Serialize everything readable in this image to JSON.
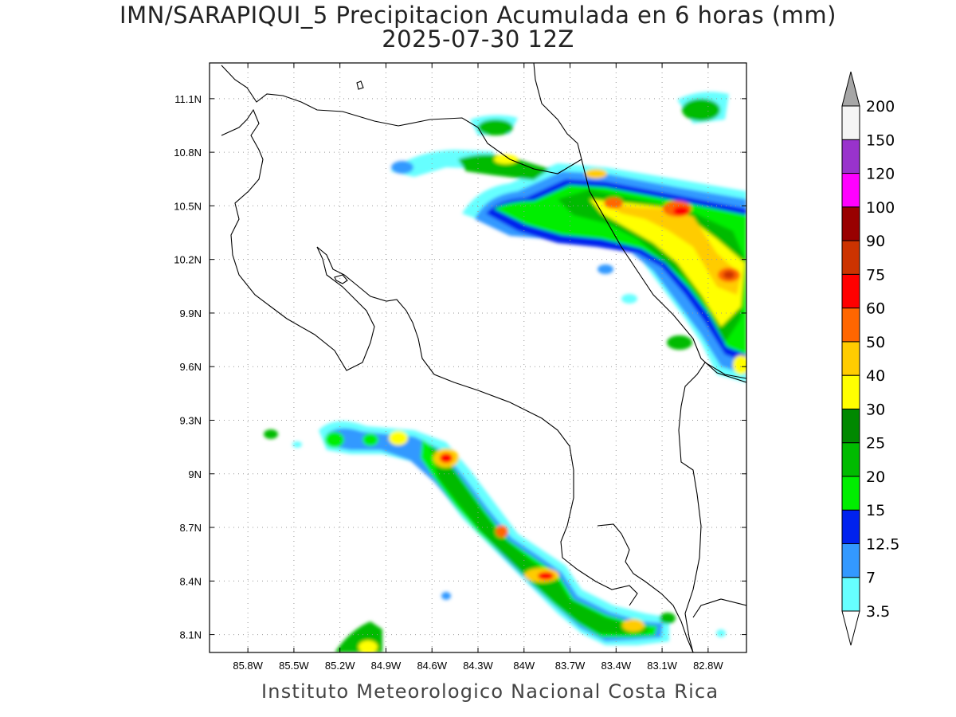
{
  "title": {
    "line1": "IMN/SARAPIQUI_5 Precipitacion Acumulada en 6 horas (mm)",
    "line2": "2025-07-30 12Z"
  },
  "footer": "Instituto Meteorologico Nacional Costa Rica",
  "map": {
    "lon_range": [
      -86.05,
      -82.55
    ],
    "lat_range": [
      8.0,
      11.3
    ],
    "lon_ticks": [
      "85.8W",
      "85.5W",
      "85.2W",
      "84.9W",
      "84.6W",
      "84.3W",
      "84W",
      "83.7W",
      "83.4W",
      "83.1W",
      "82.8W"
    ],
    "lat_ticks": [
      "8.1N",
      "8.4N",
      "8.7N",
      "9N",
      "9.3N",
      "9.6N",
      "9.9N",
      "10.2N",
      "10.5N",
      "10.8N",
      "11.1N"
    ],
    "grid": true,
    "region": "Costa Rica"
  },
  "colorbar": {
    "labels": [
      "3.5",
      "7",
      "12.5",
      "15",
      "20",
      "25",
      "30",
      "40",
      "50",
      "60",
      "75",
      "90",
      "100",
      "120",
      "150",
      "200"
    ],
    "colors": [
      "#ffffff",
      "#66ffff",
      "#3399ff",
      "#0022ee",
      "#00ee00",
      "#00bb00",
      "#008800",
      "#ffff00",
      "#ffcc00",
      "#ff6600",
      "#ff0000",
      "#cc3300",
      "#990000",
      "#ff00ff",
      "#9933cc",
      "#f5f5f5"
    ],
    "over_color": "#a6a6a6",
    "under_color": "#ffffff"
  }
}
